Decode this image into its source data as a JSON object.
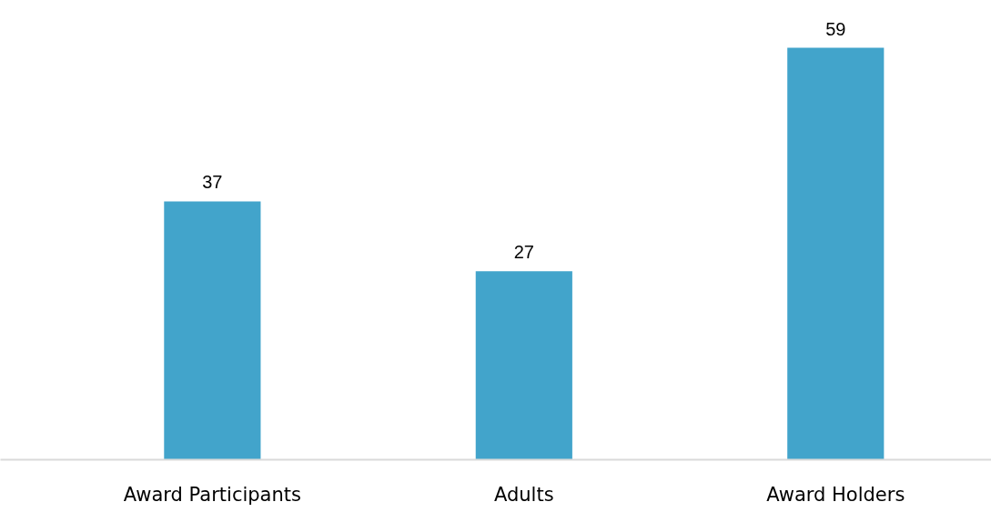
{
  "chart_data": {
    "type": "bar",
    "categories": [
      "Award Participants",
      "Adults",
      "Award Holders"
    ],
    "values": [
      37,
      27,
      59
    ],
    "color": "#42a4cb",
    "data_labels": true
  }
}
